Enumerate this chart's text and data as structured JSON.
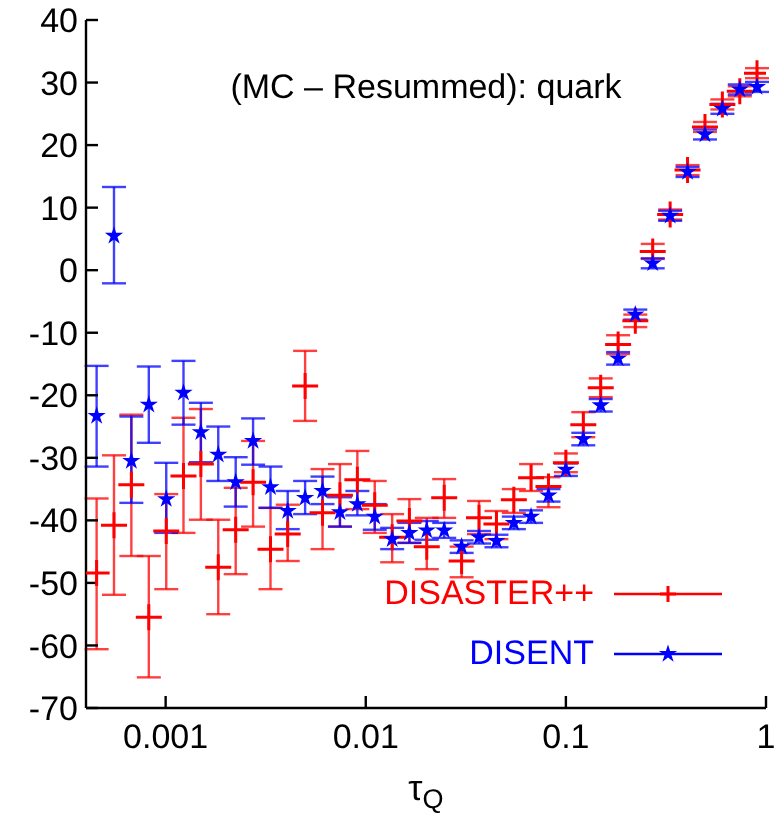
{
  "chart_data": {
    "type": "scatter",
    "xlabel": "τ$_{Q}$",
    "annotations": [
      "(MC – Resummed): quark"
    ],
    "log": "x",
    "xlim": [
      0.0004,
      1
    ],
    "xticks": [
      0.001,
      0.01,
      0.1,
      1
    ],
    "ylim": [
      -70,
      40
    ],
    "yticks": [
      -70,
      -60,
      -50,
      -40,
      -30,
      -20,
      -10,
      0,
      10,
      20,
      30,
      40
    ],
    "legend": "bottom right",
    "x": [
      0.000452,
      0.000552,
      0.000674,
      0.000824,
      0.001007,
      0.001228,
      0.0015,
      0.001832,
      0.002239,
      0.002735,
      0.003342,
      0.004074,
      0.004977,
      0.006081,
      0.00743,
      0.009078,
      0.01109,
      0.01355,
      0.01652,
      0.02018,
      0.02466,
      0.03013,
      0.03681,
      0.04498,
      0.05495,
      0.06699,
      0.08185,
      0.1,
      0.1222,
      0.1493,
      0.1824,
      0.2223,
      0.2716,
      0.3319,
      0.4055,
      0.4955,
      0.6053,
      0.7396,
      0.9016
    ],
    "series": [
      {
        "name": "DISASTER++",
        "color": "#ff0000",
        "marker": "cross",
        "values": [
          -48.4,
          -40.8,
          -34.3,
          -55.5,
          -41.7,
          -32.9,
          -31,
          -47.5,
          -41.5,
          -33.9,
          -44.6,
          -42.2,
          -18.5,
          -38.8,
          -36,
          -33.5,
          -37.6,
          -42.7,
          -40.1,
          -44.2,
          -36.4,
          -46.5,
          -39.6,
          -40.6,
          -36.7,
          -33.2,
          -34.6,
          -30.8,
          -24.7,
          -18.8,
          -11.9,
          -8.1,
          3,
          8.9,
          16,
          22.9,
          26.5,
          28.6,
          31.5
        ],
        "errors": [
          [
            -60.6,
            -36.5
          ],
          [
            -51.9,
            -29.6
          ],
          [
            -45.7,
            -23.1
          ],
          [
            -65.1,
            -45.7
          ],
          [
            -51,
            -35.8
          ],
          [
            -42,
            -23.6
          ],
          [
            -39.9,
            -22.2
          ],
          [
            -55,
            -39.9
          ],
          [
            -48.6,
            -34.8
          ],
          [
            -41,
            -27.3
          ],
          [
            -51,
            -38
          ],
          [
            -46.5,
            -37.5
          ],
          [
            -24.1,
            -12.9
          ],
          [
            -44.6,
            -31.8
          ],
          [
            -41,
            -31
          ],
          [
            -38.2,
            -28.9
          ],
          [
            -42,
            -33.7
          ],
          [
            -46.7,
            -39
          ],
          [
            -43.6,
            -36.6
          ],
          [
            -47.8,
            -39.6
          ],
          [
            -39.6,
            -33.4
          ],
          [
            -49.1,
            -44.2
          ],
          [
            -42.2,
            -36.9
          ],
          [
            -43,
            -38.5
          ],
          [
            -38.8,
            -35
          ],
          [
            -35.3,
            -31
          ],
          [
            -37.9,
            -33.1
          ],
          1.5,
          2,
          1.5,
          1.5,
          1,
          1.2,
          0.8,
          0.8,
          0.8,
          0.8,
          0.8,
          0.8
        ]
      },
      {
        "name": "DISENT",
        "color": "#0000ff",
        "marker": "star",
        "values": [
          -23.3,
          5.5,
          -30.5,
          -21.5,
          -36.6,
          -19.6,
          -25.9,
          -29.5,
          -33.9,
          -27.3,
          -34.7,
          -38.5,
          -36.4,
          -35.3,
          -38.7,
          -37.4,
          -39.4,
          -43,
          -42,
          -41.6,
          -41.6,
          -44.2,
          -42.7,
          -43.3,
          -40.4,
          -39.4,
          -36,
          -31.9,
          -27,
          -21.6,
          -14.1,
          -7.1,
          1.1,
          8.7,
          15.7,
          21.7,
          25.8,
          28.9,
          29.3
        ],
        "errors": [
          [
            -31.4,
            -15.3
          ],
          [
            -2.1,
            13.3
          ],
          [
            -37.2,
            -23.4
          ],
          [
            -27.6,
            -15.4
          ],
          [
            -42,
            -30.8
          ],
          [
            -24.7,
            -14.5
          ],
          [
            -30.7,
            -21.2
          ],
          [
            -33.7,
            -25
          ],
          [
            -37.8,
            -29.9
          ],
          [
            -31.1,
            -23.7
          ],
          [
            -38,
            -31.4
          ],
          [
            -41.4,
            -35.3
          ],
          [
            -39,
            -33.7
          ],
          [
            -37.4,
            -33
          ],
          [
            -41,
            -36.3
          ],
          [
            -39.2,
            -35.3
          ],
          [
            -41.5,
            -37.4
          ],
          [
            -44.6,
            -41.2
          ],
          [
            -43.6,
            -40.4
          ],
          1.5,
          1.2,
          1,
          1,
          1,
          1,
          1,
          1,
          1,
          1,
          1,
          1,
          0.8,
          0.8,
          0.8,
          0.8,
          0.8,
          0.8,
          0.8,
          0.8
        ]
      }
    ]
  }
}
